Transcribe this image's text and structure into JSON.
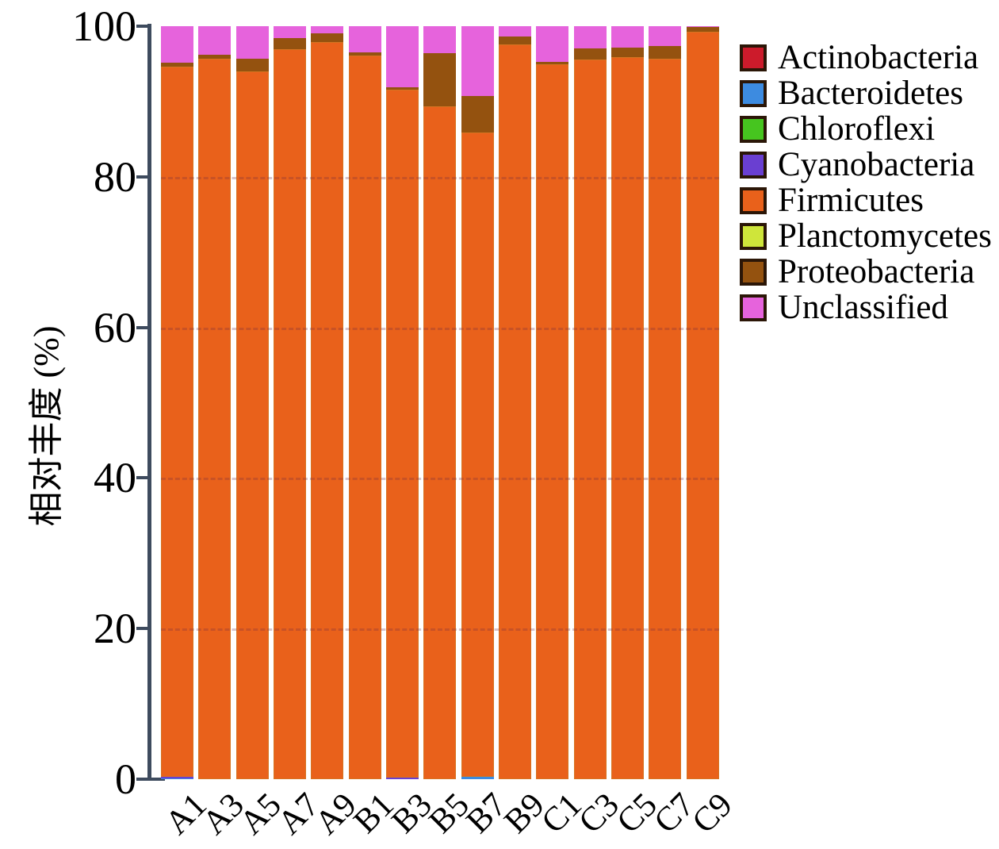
{
  "figure": {
    "y_axis_label": "相对丰度 (%)",
    "y_ticks": [
      {
        "label": "100",
        "value": 100
      },
      {
        "label": "80",
        "value": 80
      },
      {
        "label": "60",
        "value": 60
      },
      {
        "label": "40",
        "value": 40
      },
      {
        "label": "20",
        "value": 20
      },
      {
        "label": "0",
        "value": 0
      }
    ],
    "gridline_values": [
      80,
      60,
      40,
      20
    ],
    "axis_color": "#3e4b5e"
  },
  "chart_data": {
    "type": "bar",
    "stacked": true,
    "title": "",
    "xlabel": "",
    "ylabel": "相对丰度 (%)",
    "ylim": [
      0,
      100
    ],
    "grid": "faint dashed horizontal lines at 20/40/60/80",
    "legend_position": "right",
    "categories": [
      "A1",
      "A3",
      "A5",
      "A7",
      "A9",
      "B1",
      "B3",
      "B5",
      "B7",
      "B9",
      "C1",
      "C3",
      "C5",
      "C7",
      "C9"
    ],
    "series": [
      {
        "name": "Actinobacteria",
        "color": "#cc1b2b",
        "values": [
          0,
          0,
          0,
          0,
          0,
          0,
          0,
          0,
          0,
          0,
          0,
          0,
          0,
          0,
          0
        ]
      },
      {
        "name": "Bacteroidetes",
        "color": "#3d8be0",
        "values": [
          0.1,
          0,
          0,
          0,
          0,
          0,
          0,
          0,
          0.3,
          0,
          0,
          0,
          0,
          0,
          0
        ]
      },
      {
        "name": "Chloroflexi",
        "color": "#46c51f",
        "values": [
          0,
          0,
          0,
          0,
          0,
          0,
          0,
          0,
          0,
          0,
          0,
          0,
          0,
          0,
          0
        ]
      },
      {
        "name": "Cyanobacteria",
        "color": "#6a3fd1",
        "values": [
          0.2,
          0,
          0,
          0,
          0,
          0,
          0.2,
          0,
          0,
          0,
          0,
          0,
          0,
          0,
          0
        ]
      },
      {
        "name": "Firmicutes",
        "color": "#e9611b",
        "values": [
          94.3,
          95.7,
          94.0,
          96.9,
          97.9,
          96.1,
          91.4,
          89.4,
          85.6,
          97.6,
          94.9,
          95.6,
          95.9,
          95.7,
          99.3
        ]
      },
      {
        "name": "Planctomycetes",
        "color": "#cfe53a",
        "values": [
          0,
          0,
          0,
          0,
          0,
          0,
          0,
          0,
          0,
          0,
          0,
          0,
          0,
          0,
          0
        ]
      },
      {
        "name": "Proteobacteria",
        "color": "#94520f",
        "values": [
          0.6,
          0.5,
          1.7,
          1.5,
          1.2,
          0.4,
          0.3,
          7.0,
          4.8,
          1.0,
          0.4,
          1.4,
          1.3,
          1.7,
          0.6
        ]
      },
      {
        "name": "Unclassified",
        "color": "#e663dc",
        "values": [
          4.8,
          3.8,
          4.3,
          1.6,
          0.9,
          3.5,
          8.1,
          3.6,
          9.3,
          1.4,
          4.7,
          3.0,
          2.8,
          2.6,
          0.1
        ]
      }
    ]
  }
}
